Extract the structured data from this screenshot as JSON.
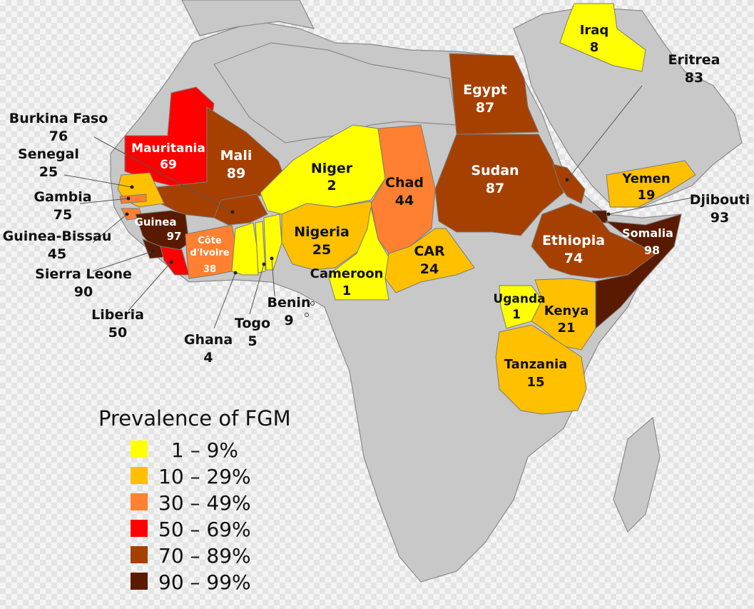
{
  "colors": {
    "bin1": "#ffff00",
    "bin2": "#ffc000",
    "bin3": "#ff8030",
    "bin4": "#ff0000",
    "bin5": "#a64000",
    "bin6": "#5a1a00",
    "no_data": "#c8c8c8"
  },
  "countries": {
    "iraq": {
      "name": "Iraq",
      "value": "8"
    },
    "egypt": {
      "name": "Egypt",
      "value": "87"
    },
    "eritrea": {
      "name": "Eritrea",
      "value": "83"
    },
    "burkina_faso": {
      "name": "Burkina Faso",
      "value": "76"
    },
    "senegal": {
      "name": "Senegal",
      "value": "25"
    },
    "mauritania": {
      "name": "Mauritania",
      "value": "69"
    },
    "mali": {
      "name": "Mali",
      "value": "89"
    },
    "niger": {
      "name": "Niger",
      "value": "2"
    },
    "chad": {
      "name": "Chad",
      "value": "44"
    },
    "sudan": {
      "name": "Sudan",
      "value": "87"
    },
    "yemen": {
      "name": "Yemen",
      "value": "19"
    },
    "djibouti": {
      "name": "Djibouti",
      "value": "93"
    },
    "gambia": {
      "name": "Gambia",
      "value": "75"
    },
    "guinea_bissau": {
      "name": "Guinea-Bissau",
      "value": "45"
    },
    "guinea": {
      "name": "Guinea",
      "value": "97"
    },
    "cote_divoire": {
      "name_line1": "Côte",
      "name_line2": "d'Ivoire",
      "value": "38"
    },
    "nigeria": {
      "name": "Nigeria",
      "value": "25"
    },
    "car": {
      "name": "CAR",
      "value": "24"
    },
    "somalia": {
      "name": "Somalia",
      "value": "98"
    },
    "ethiopia": {
      "name": "Ethiopia",
      "value": "74"
    },
    "sierra_leone": {
      "name": "Sierra Leone",
      "value": "90"
    },
    "cameroon": {
      "name": "Cameroon",
      "value": "1"
    },
    "liberia": {
      "name": "Liberia",
      "value": "50"
    },
    "uganda": {
      "name": "Uganda",
      "value": "1"
    },
    "kenya": {
      "name": "Kenya",
      "value": "21"
    },
    "benin": {
      "name": "Benin",
      "value": "9"
    },
    "togo": {
      "name": "Togo",
      "value": "5"
    },
    "ghana": {
      "name": "Ghana",
      "value": "4"
    },
    "tanzania": {
      "name": "Tanzania",
      "value": "15"
    }
  },
  "legend": {
    "title": "Prevalence of FGM",
    "items": [
      {
        "label": "1 – 9%",
        "color": "#ffff00"
      },
      {
        "label": "10 – 29%",
        "color": "#ffc000"
      },
      {
        "label": "30 – 49%",
        "color": "#ff8030"
      },
      {
        "label": "50 – 69%",
        "color": "#ff0000"
      },
      {
        "label": "70 – 89%",
        "color": "#a64000"
      },
      {
        "label": "90 – 99%",
        "color": "#5a1a00"
      }
    ]
  }
}
